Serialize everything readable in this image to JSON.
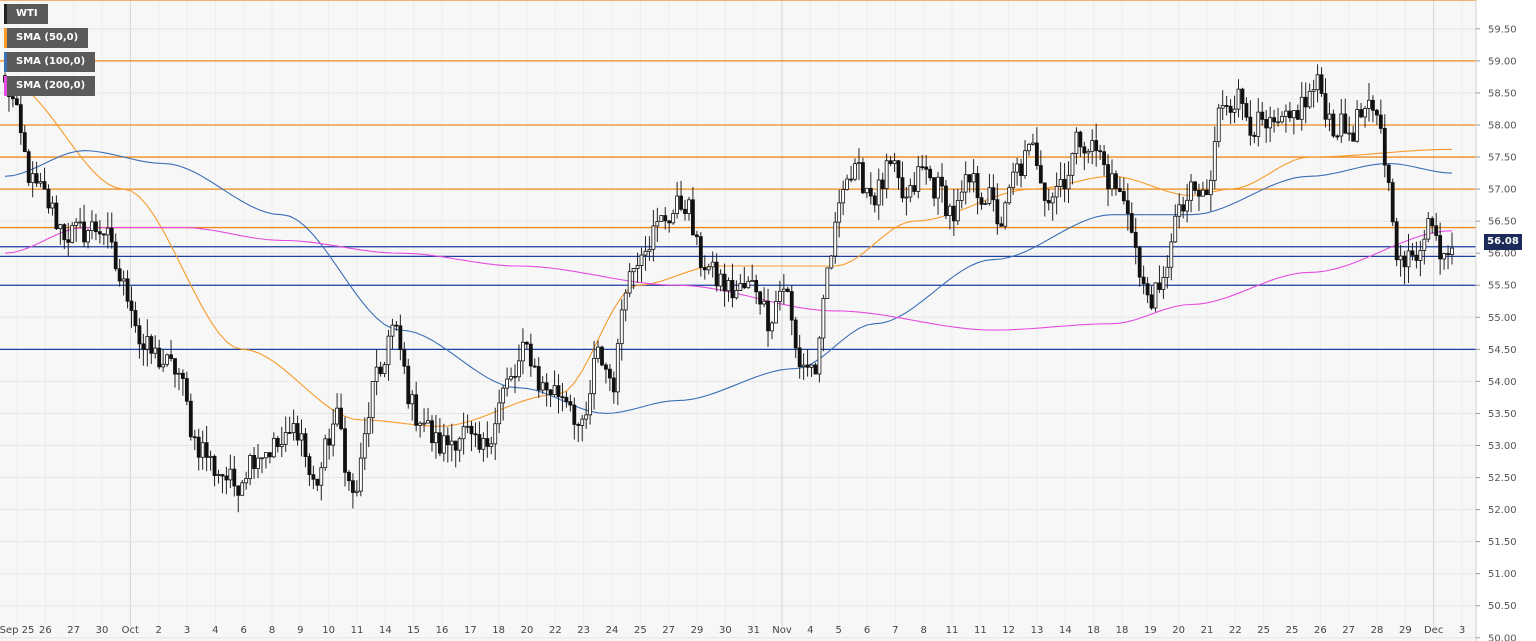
{
  "chart_data": {
    "type": "candlestick",
    "instrument": "WTI",
    "last_price": "56.08",
    "ylim": [
      49.95,
      59.95
    ],
    "y_ticks": [
      "50.00",
      "50.50",
      "51.00",
      "51.50",
      "52.00",
      "52.50",
      "53.00",
      "53.50",
      "54.00",
      "54.50",
      "55.00",
      "55.50",
      "56.00",
      "56.50",
      "57.00",
      "57.50",
      "58.00",
      "58.50",
      "59.00",
      "59.50"
    ],
    "x_ticks": [
      "Sep 25",
      "26",
      "27",
      "30",
      "Oct",
      "2",
      "3",
      "4",
      "6",
      "8",
      "9",
      "10",
      "11",
      "14",
      "15",
      "16",
      "17",
      "18",
      "20",
      "22",
      "23",
      "24",
      "25",
      "27",
      "29",
      "30",
      "31",
      "Nov",
      "4",
      "5",
      "6",
      "7",
      "8",
      "11",
      "11",
      "12",
      "13",
      "14",
      "18",
      "18",
      "19",
      "20",
      "21",
      "22",
      "25",
      "25",
      "26",
      "27",
      "28",
      "29",
      "Dec",
      "3"
    ],
    "separator_labels": [
      "Oct",
      "Nov",
      "Dec"
    ],
    "resistance_levels": [
      59.95,
      59.0,
      58.0,
      57.5,
      57.0,
      56.4
    ],
    "support_levels": [
      56.1,
      55.95,
      55.5,
      54.5
    ],
    "anchors": [
      [
        0,
        58.6
      ],
      [
        8,
        57.0
      ],
      [
        16,
        56.3
      ],
      [
        24,
        56.4
      ],
      [
        31,
        55.4
      ],
      [
        35,
        54.5
      ],
      [
        43,
        54.2
      ],
      [
        49,
        53.0
      ],
      [
        54,
        52.6
      ],
      [
        58,
        52.4
      ],
      [
        64,
        52.9
      ],
      [
        70,
        53.0
      ],
      [
        74,
        53.3
      ],
      [
        78,
        52.4
      ],
      [
        84,
        53.4
      ],
      [
        88,
        52.2
      ],
      [
        94,
        54.0
      ],
      [
        98,
        54.8
      ],
      [
        104,
        53.5
      ],
      [
        110,
        53.0
      ],
      [
        116,
        53.2
      ],
      [
        120,
        52.9
      ],
      [
        128,
        54.0
      ],
      [
        132,
        54.5
      ],
      [
        136,
        53.9
      ],
      [
        142,
        53.8
      ],
      [
        146,
        53.2
      ],
      [
        150,
        54.4
      ],
      [
        154,
        54.0
      ],
      [
        157,
        55.6
      ],
      [
        162,
        56.2
      ],
      [
        168,
        56.6
      ],
      [
        172,
        56.8
      ],
      [
        176,
        55.9
      ],
      [
        180,
        55.6
      ],
      [
        184,
        55.4
      ],
      [
        190,
        55.5
      ],
      [
        193,
        55.0
      ],
      [
        197,
        55.5
      ],
      [
        201,
        54.3
      ],
      [
        205,
        54.2
      ],
      [
        209,
        56.0
      ],
      [
        212,
        57.2
      ],
      [
        216,
        57.2
      ],
      [
        220,
        56.9
      ],
      [
        224,
        57.3
      ],
      [
        228,
        56.8
      ],
      [
        232,
        57.3
      ],
      [
        236,
        57.0
      ],
      [
        240,
        56.6
      ],
      [
        244,
        57.1
      ],
      [
        248,
        56.9
      ],
      [
        252,
        56.5
      ],
      [
        256,
        57.3
      ],
      [
        260,
        57.6
      ],
      [
        264,
        56.9
      ],
      [
        268,
        57.2
      ],
      [
        272,
        57.8
      ],
      [
        276,
        57.6
      ],
      [
        280,
        57.1
      ],
      [
        284,
        56.7
      ],
      [
        288,
        55.4
      ],
      [
        292,
        55.3
      ],
      [
        296,
        56.5
      ],
      [
        300,
        56.9
      ],
      [
        304,
        56.9
      ],
      [
        308,
        58.4
      ],
      [
        312,
        58.4
      ],
      [
        316,
        58.0
      ],
      [
        320,
        57.9
      ],
      [
        324,
        58.0
      ],
      [
        328,
        58.3
      ],
      [
        332,
        58.6
      ],
      [
        336,
        58.0
      ],
      [
        340,
        57.9
      ],
      [
        344,
        58.2
      ],
      [
        348,
        58.0
      ],
      [
        350,
        57.0
      ],
      [
        353,
        55.8
      ],
      [
        356,
        55.9
      ],
      [
        360,
        56.5
      ],
      [
        363,
        56.1
      ],
      [
        366,
        56.08
      ]
    ],
    "sma_50": [
      [
        0,
        58.7
      ],
      [
        30,
        57.0
      ],
      [
        60,
        54.5
      ],
      [
        90,
        53.4
      ],
      [
        110,
        53.3
      ],
      [
        140,
        53.8
      ],
      [
        160,
        55.5
      ],
      [
        180,
        55.8
      ],
      [
        210,
        55.8
      ],
      [
        230,
        56.5
      ],
      [
        260,
        57.0
      ],
      [
        280,
        57.2
      ],
      [
        300,
        56.9
      ],
      [
        310,
        57.0
      ],
      [
        330,
        57.5
      ],
      [
        366,
        57.62
      ]
    ],
    "sma_100": [
      [
        0,
        57.2
      ],
      [
        20,
        57.6
      ],
      [
        40,
        57.4
      ],
      [
        70,
        56.6
      ],
      [
        100,
        54.8
      ],
      [
        130,
        53.9
      ],
      [
        152,
        53.5
      ],
      [
        170,
        53.7
      ],
      [
        200,
        54.2
      ],
      [
        220,
        54.9
      ],
      [
        250,
        55.9
      ],
      [
        280,
        56.6
      ],
      [
        300,
        56.6
      ],
      [
        330,
        57.2
      ],
      [
        350,
        57.4
      ],
      [
        366,
        57.25
      ]
    ],
    "sma_200": [
      [
        0,
        56.0
      ],
      [
        20,
        56.4
      ],
      [
        45,
        56.4
      ],
      [
        70,
        56.2
      ],
      [
        100,
        56.0
      ],
      [
        130,
        55.8
      ],
      [
        170,
        55.5
      ],
      [
        210,
        55.1
      ],
      [
        250,
        54.8
      ],
      [
        280,
        54.9
      ],
      [
        300,
        55.2
      ],
      [
        330,
        55.7
      ],
      [
        366,
        56.35
      ]
    ],
    "legend": [
      {
        "label": "WTI",
        "color": "#222222"
      },
      {
        "label": "SMA (50,0)",
        "color": "#f79a2a"
      },
      {
        "label": "SMA (100,0)",
        "color": "#3a6fb6"
      },
      {
        "label": "SMA (200,0)",
        "color": "#e54be0"
      }
    ],
    "colors": {
      "resistance": "#f08a1c",
      "support": "#1b3fa0",
      "sma50": "#f79a2a",
      "sma100": "#3a6fb6",
      "sma200": "#e54be0",
      "grid": "#e6e6e6"
    },
    "grid": true,
    "legend_position": "top-left"
  }
}
